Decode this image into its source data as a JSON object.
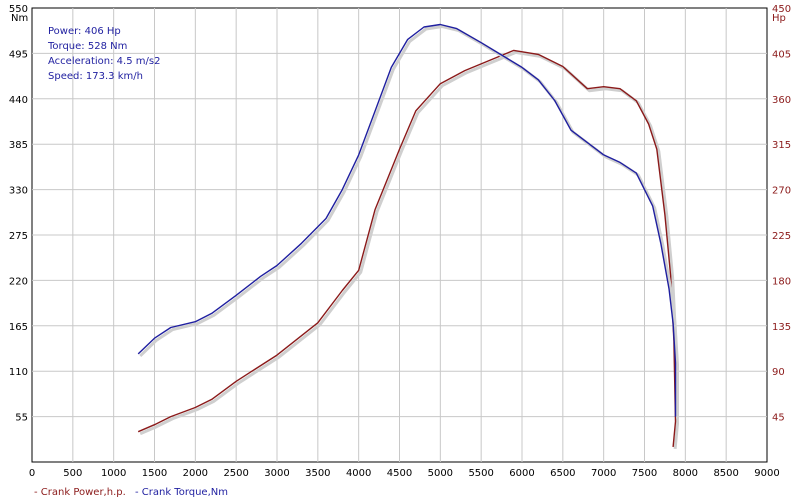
{
  "chart_data": {
    "type": "line",
    "xlabel": "",
    "xlim": [
      0,
      9000
    ],
    "x_ticks": [
      "0",
      "500",
      "1000",
      "1500",
      "2000",
      "2500",
      "3000",
      "3500",
      "4000",
      "4500",
      "5000",
      "5500",
      "6000",
      "6500",
      "7000",
      "7500",
      "8000",
      "8500",
      "9000"
    ],
    "y_left": {
      "unit": "Nm",
      "range": [
        0,
        550
      ],
      "ticks": [
        "550",
        "495",
        "440",
        "385",
        "330",
        "275",
        "220",
        "165",
        "110",
        "55"
      ]
    },
    "y_right": {
      "unit": "Hp",
      "range": [
        0,
        450
      ],
      "ticks": [
        "450",
        "405",
        "360",
        "315",
        "270",
        "225",
        "180",
        "135",
        "90",
        "45"
      ]
    },
    "grid": true,
    "info_box": {
      "power": "Power: 406 Hp",
      "torque": "Torque: 528 Nm",
      "acceleration": "Acceleration: 4.5 m/s2",
      "speed": "Speed: 173.3 km/h"
    },
    "series": [
      {
        "name": "Crank Power,h.p.",
        "legend_label": "- Crank Power,h.p.",
        "axis": "right",
        "color": "#8b1a1a",
        "points": [
          [
            1300,
            30
          ],
          [
            1500,
            37
          ],
          [
            1700,
            45
          ],
          [
            2000,
            54
          ],
          [
            2200,
            62
          ],
          [
            2500,
            80
          ],
          [
            3000,
            106
          ],
          [
            3500,
            138
          ],
          [
            3800,
            170
          ],
          [
            4000,
            190
          ],
          [
            4200,
            250
          ],
          [
            4500,
            310
          ],
          [
            4700,
            348
          ],
          [
            5000,
            375
          ],
          [
            5300,
            388
          ],
          [
            5600,
            398
          ],
          [
            5900,
            408
          ],
          [
            6200,
            404
          ],
          [
            6500,
            392
          ],
          [
            6800,
            370
          ],
          [
            7000,
            372
          ],
          [
            7200,
            370
          ],
          [
            7400,
            358
          ],
          [
            7550,
            335
          ],
          [
            7650,
            310
          ],
          [
            7750,
            245
          ],
          [
            7820,
            185
          ],
          [
            7860,
            120
          ],
          [
            7880,
            40
          ],
          [
            7850,
            15
          ]
        ]
      },
      {
        "name": "Crank Torque,Nm",
        "legend_label": "- Crank Torque,Nm",
        "axis": "left",
        "color": "#1f1fa0",
        "points": [
          [
            1300,
            131
          ],
          [
            1500,
            150
          ],
          [
            1700,
            163
          ],
          [
            2000,
            170
          ],
          [
            2200,
            180
          ],
          [
            2500,
            202
          ],
          [
            2800,
            225
          ],
          [
            3000,
            238
          ],
          [
            3300,
            265
          ],
          [
            3600,
            295
          ],
          [
            3800,
            330
          ],
          [
            4000,
            372
          ],
          [
            4200,
            425
          ],
          [
            4400,
            478
          ],
          [
            4600,
            512
          ],
          [
            4800,
            527
          ],
          [
            5000,
            530
          ],
          [
            5200,
            525
          ],
          [
            5500,
            508
          ],
          [
            5800,
            490
          ],
          [
            6000,
            478
          ],
          [
            6200,
            463
          ],
          [
            6400,
            438
          ],
          [
            6600,
            402
          ],
          [
            7000,
            372
          ],
          [
            7200,
            363
          ],
          [
            7400,
            350
          ],
          [
            7600,
            310
          ],
          [
            7700,
            265
          ],
          [
            7800,
            210
          ],
          [
            7850,
            168
          ],
          [
            7880,
            120
          ],
          [
            7880,
            55
          ]
        ]
      }
    ]
  }
}
